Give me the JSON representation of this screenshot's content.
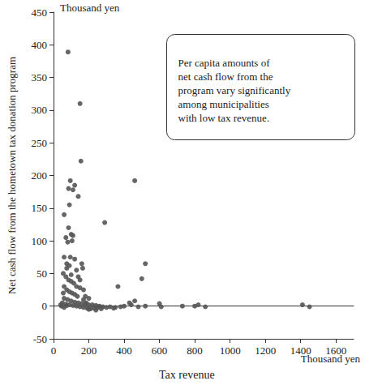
{
  "chart_data": {
    "type": "scatter",
    "x_label": "Tax revenue",
    "y_label": "Net cash flow from the hometown tax donation program",
    "x_unit": "Thousand yen",
    "y_unit": "Thousand yen",
    "annotation": "Per capita amounts of\nnet cash flow from the\nprogram vary significantly\namong municipalities\nwith low tax revenue.",
    "color": "#555555",
    "marker": "circle",
    "grid": false,
    "xlim": [
      0,
      1700
    ],
    "ylim": [
      -50,
      450
    ],
    "xticks": [
      0,
      200,
      400,
      600,
      800,
      1000,
      1200,
      1400,
      1600
    ],
    "yticks": [
      -50,
      0,
      50,
      100,
      150,
      200,
      250,
      300,
      350,
      400,
      450
    ],
    "x": [
      82,
      150,
      155,
      460,
      95,
      85,
      120,
      110,
      140,
      90,
      85,
      100,
      105,
      70,
      80,
      110,
      290,
      60,
      95,
      120,
      75,
      90,
      160,
      165,
      140,
      520,
      500,
      365,
      55,
      70,
      85,
      100,
      115,
      130,
      150,
      170,
      60,
      75,
      90,
      105,
      120,
      135,
      180,
      200,
      60,
      80,
      100,
      120,
      140,
      160,
      180,
      200,
      220,
      240,
      260,
      280,
      300,
      320,
      340,
      50,
      70,
      90,
      110,
      130,
      150,
      170,
      190,
      210,
      230,
      250,
      400,
      430,
      460,
      480,
      520,
      600,
      610,
      730,
      800,
      820,
      860,
      1410,
      1450,
      45,
      60,
      75,
      40,
      200,
      240,
      270,
      350,
      380,
      440,
      60,
      75,
      55,
      100,
      130,
      150,
      170,
      185
    ],
    "values": [
      389,
      310,
      222,
      192,
      192,
      180,
      185,
      178,
      168,
      155,
      120,
      110,
      100,
      105,
      98,
      108,
      128,
      75,
      75,
      72,
      65,
      62,
      65,
      58,
      45,
      65,
      42,
      30,
      50,
      45,
      40,
      38,
      35,
      30,
      28,
      25,
      30,
      25,
      22,
      20,
      18,
      15,
      15,
      12,
      12,
      10,
      8,
      6,
      5,
      4,
      3,
      2,
      2,
      1,
      0,
      -1,
      -2,
      -1,
      -3,
      5,
      3,
      2,
      1,
      0,
      -1,
      -2,
      -3,
      -4,
      -3,
      -2,
      0,
      5,
      8,
      -1,
      0,
      4,
      -1,
      0,
      0,
      2,
      -1,
      2,
      -1,
      0,
      -2,
      1,
      2,
      -5,
      -6,
      -4,
      -2,
      -1,
      2,
      140,
      58,
      20,
      48,
      55,
      40,
      10,
      5
    ]
  }
}
